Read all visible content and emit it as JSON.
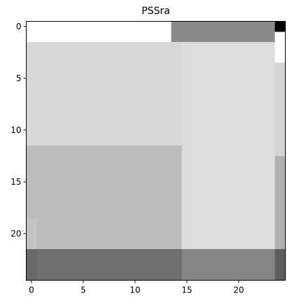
{
  "chart_data": {
    "type": "heatmap",
    "title": "PSSra",
    "colormap": "gray",
    "xlabel": "",
    "ylabel": "",
    "x_ticks": [
      0,
      5,
      10,
      15,
      20
    ],
    "y_ticks": [
      0,
      5,
      10,
      15,
      20
    ],
    "xlim": [
      -0.5,
      24.5
    ],
    "ylim": [
      24.5,
      -0.5
    ],
    "columns": 25,
    "rows": 25,
    "cells": [
      {
        "x": [
          0,
          13
        ],
        "y": [
          0,
          1
        ],
        "color": "#ffffff"
      },
      {
        "x": [
          14,
          23
        ],
        "y": [
          0,
          1
        ],
        "color": "#8a8a8a"
      },
      {
        "x": [
          24,
          24
        ],
        "y": [
          0,
          0
        ],
        "color": "#000000"
      },
      {
        "x": [
          24,
          24
        ],
        "y": [
          1,
          1
        ],
        "color": "#ffffff"
      },
      {
        "x": [
          0,
          14
        ],
        "y": [
          2,
          11
        ],
        "color": "#d8d8d8"
      },
      {
        "x": [
          15,
          23
        ],
        "y": [
          2,
          21
        ],
        "color": "#dcdcdc"
      },
      {
        "x": [
          24,
          24
        ],
        "y": [
          2,
          3
        ],
        "color": "#ffffff"
      },
      {
        "x": [
          24,
          24
        ],
        "y": [
          4,
          12
        ],
        "color": "#d4d4d4"
      },
      {
        "x": [
          0,
          14
        ],
        "y": [
          12,
          21
        ],
        "color": "#bcbcbc"
      },
      {
        "x": [
          0,
          0
        ],
        "y": [
          19,
          21
        ],
        "color": "#c2c2c2"
      },
      {
        "x": [
          24,
          24
        ],
        "y": [
          13,
          21
        ],
        "color": "#b0b0b0"
      },
      {
        "x": [
          0,
          0
        ],
        "y": [
          22,
          24
        ],
        "color": "#686868"
      },
      {
        "x": [
          1,
          14
        ],
        "y": [
          22,
          24
        ],
        "color": "#6e6e6e"
      },
      {
        "x": [
          15,
          23
        ],
        "y": [
          22,
          24
        ],
        "color": "#858585"
      },
      {
        "x": [
          24,
          24
        ],
        "y": [
          22,
          24
        ],
        "color": "#5e5e5e"
      }
    ]
  }
}
